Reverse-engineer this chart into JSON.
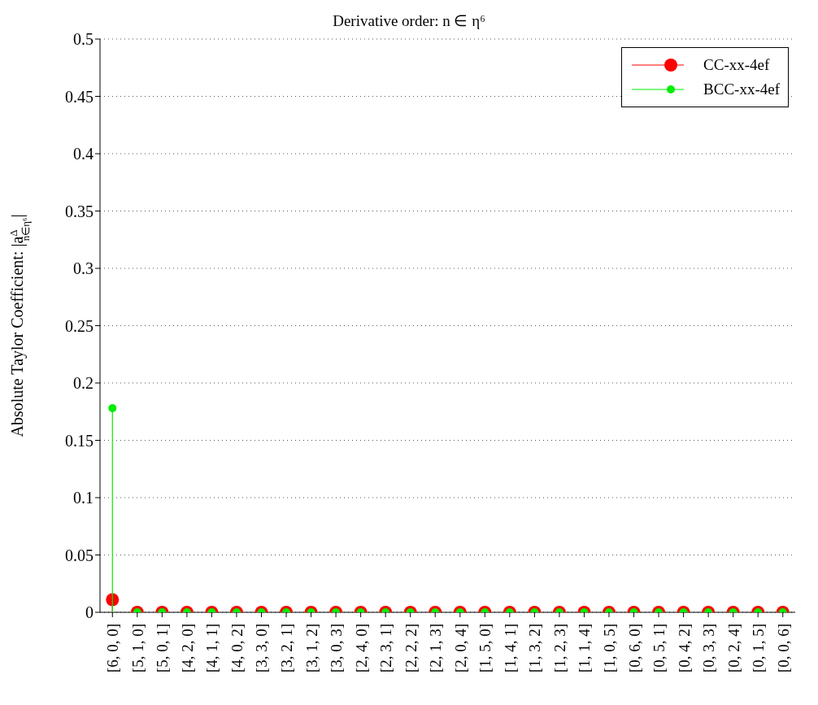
{
  "chart_data": {
    "type": "lollipop",
    "title": "Derivative order: n ∈ η⁶",
    "ylabel": "Absolute Taylor Coefficient: |a$^{Δ}$$_{n∈η⁶}$|",
    "categories": [
      "[6, 0, 0]",
      "[5, 1, 0]",
      "[5, 0, 1]",
      "[4, 2, 0]",
      "[4, 1, 1]",
      "[4, 0, 2]",
      "[3, 3, 0]",
      "[3, 2, 1]",
      "[3, 1, 2]",
      "[3, 0, 3]",
      "[2, 4, 0]",
      "[2, 3, 1]",
      "[2, 2, 2]",
      "[2, 1, 3]",
      "[2, 0, 4]",
      "[1, 5, 0]",
      "[1, 4, 1]",
      "[1, 3, 2]",
      "[1, 2, 3]",
      "[1, 1, 4]",
      "[1, 0, 5]",
      "[0, 6, 0]",
      "[0, 5, 1]",
      "[0, 4, 2]",
      "[0, 3, 3]",
      "[0, 2, 4]",
      "[0, 1, 5]",
      "[0, 0, 6]"
    ],
    "series": [
      {
        "name": "CC-xx-4ef",
        "color": "#ff0000",
        "values": [
          0.011,
          0,
          0,
          0,
          0,
          0,
          0,
          0,
          0,
          0,
          0,
          0,
          0,
          0,
          0,
          0,
          0,
          0,
          0,
          0,
          0,
          0,
          0,
          0,
          0,
          0,
          0,
          0
        ]
      },
      {
        "name": "BCC-xx-4ef",
        "color": "#00ee00",
        "values": [
          0.178,
          0,
          0,
          0,
          0,
          0,
          0,
          0,
          0,
          0,
          0,
          0,
          0,
          0,
          0,
          0,
          0,
          0,
          0,
          0,
          0,
          0,
          0,
          0,
          0,
          0,
          0,
          0
        ]
      }
    ],
    "ylim": [
      0,
      0.5
    ],
    "yticks": [
      0,
      0.05,
      0.1,
      0.15,
      0.2,
      0.25,
      0.3,
      0.35,
      0.4,
      0.45,
      0.5
    ],
    "grid": "y",
    "legend": "top right",
    "marker": "circle",
    "line_style": "dotted"
  }
}
